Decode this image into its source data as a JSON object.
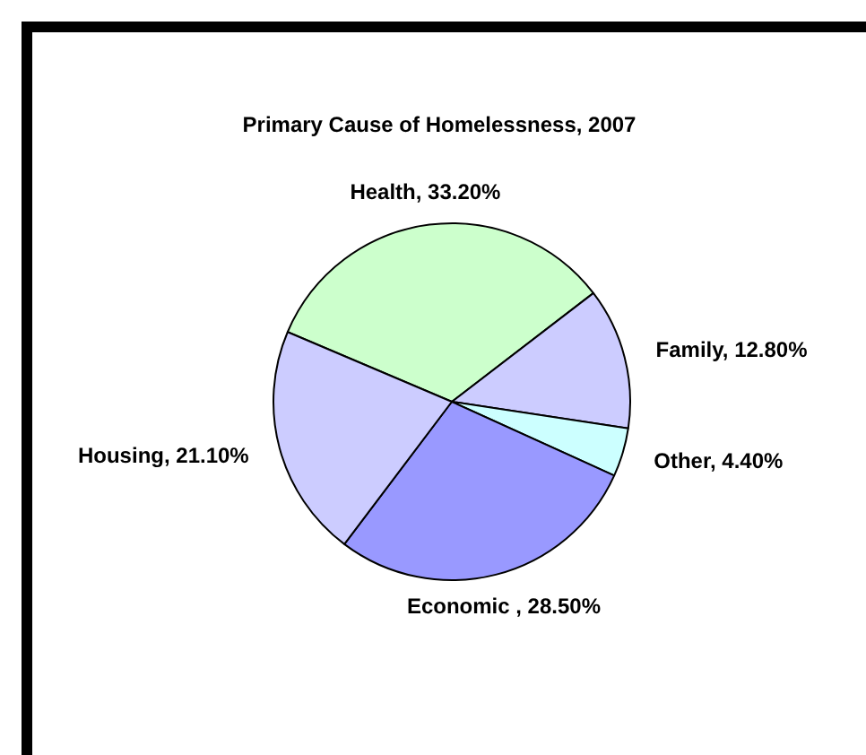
{
  "chart_data": {
    "type": "pie",
    "title": "Primary Cause of Homelessness, 2007",
    "categories": [
      "Health",
      "Family",
      "Other",
      "Economic ",
      "Housing"
    ],
    "values": [
      33.2,
      12.8,
      4.4,
      28.5,
      21.1
    ],
    "value_labels": [
      "33.20%",
      "12.80%",
      "4.40%",
      "28.50%",
      "21.10%"
    ],
    "colors": [
      "#ccffcc",
      "#ccccff",
      "#ccffff",
      "#9999ff",
      "#ccccff"
    ],
    "legend": false
  }
}
